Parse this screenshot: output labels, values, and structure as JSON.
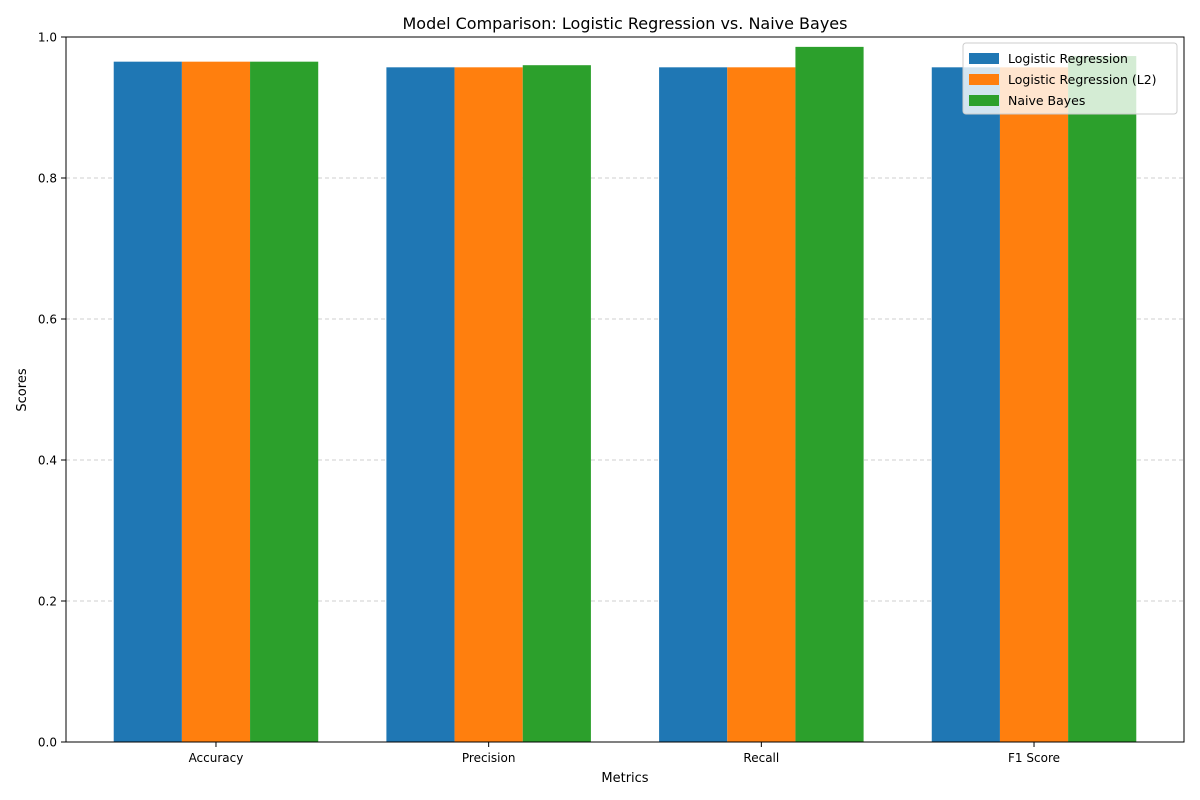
{
  "chart_data": {
    "type": "bar",
    "title": "Model Comparison: Logistic Regression vs. Naive Bayes",
    "xlabel": "Metrics",
    "ylabel": "Scores",
    "categories": [
      "Accuracy",
      "Precision",
      "Recall",
      "F1 Score"
    ],
    "ylim": [
      0,
      1.0
    ],
    "yticks": [
      "0.0",
      "0.2",
      "0.4",
      "0.6",
      "0.8",
      "1.0"
    ],
    "grid": "y-dashed",
    "legend_position": "top-right",
    "series": [
      {
        "name": "Logistic Regression",
        "color": "#1f77b4",
        "values": [
          0.965,
          0.957,
          0.957,
          0.957
        ]
      },
      {
        "name": "Logistic Regression (L2)",
        "color": "#ff7f0e",
        "values": [
          0.965,
          0.957,
          0.957,
          0.957
        ]
      },
      {
        "name": "Naive Bayes",
        "color": "#2ca02c",
        "values": [
          0.965,
          0.96,
          0.986,
          0.973
        ]
      }
    ]
  }
}
